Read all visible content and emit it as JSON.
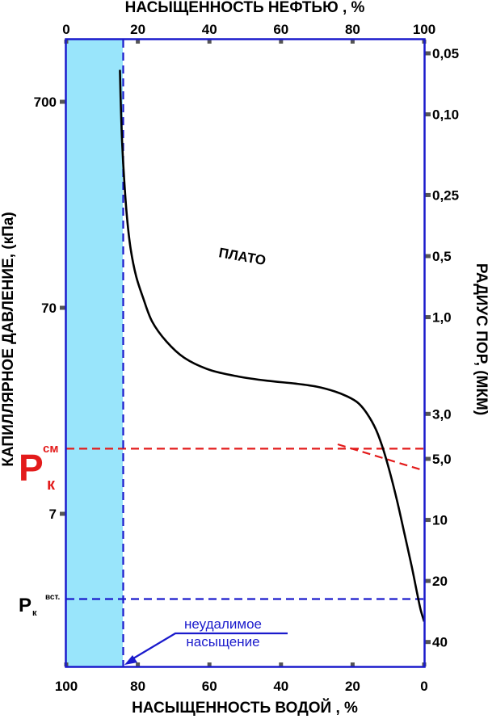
{
  "chart_data": {
    "type": "line",
    "title": "",
    "axes": {
      "top_x": {
        "label": "НАСЫЩЕННОСТЬ НЕФТЬЮ , %",
        "range": [
          0,
          100
        ],
        "ticks": [
          "0",
          "20",
          "40",
          "60",
          "80",
          "100"
        ]
      },
      "bottom_x": {
        "label": "НАСЫЩЕННОСТЬ ВОДОЙ , %",
        "range": [
          100,
          0
        ],
        "ticks": [
          "100",
          "80",
          "60",
          "40",
          "20",
          "0"
        ]
      },
      "left_y": {
        "label": "КАПИЛЛЯРНОЕ ДАВЛЕНИЕ, (кПа)",
        "scale": "log",
        "ticks": [
          {
            "value": 700,
            "label": "700"
          },
          {
            "value": 70,
            "label": "70"
          },
          {
            "value": 7,
            "label": "7"
          }
        ]
      },
      "right_y": {
        "label": "РАДИУС ПОР, (МКМ)",
        "scale": "log-reciprocal",
        "ticks": [
          "0,05",
          "0,10",
          "0,25",
          "0,5",
          "1,0",
          "3,0",
          "5,0",
          "10",
          "20",
          "40"
        ]
      }
    },
    "series": [
      {
        "name": "",
        "x_oil_saturation_pct": [
          15,
          15.2,
          15.6,
          16.2,
          17,
          18,
          19.5,
          21.5,
          24,
          28,
          33,
          40,
          48,
          56,
          64,
          70,
          75,
          78.5,
          81.5,
          84,
          86.5,
          88.5,
          90.5,
          92.5,
          94.5,
          96.5,
          98,
          99,
          100
        ],
        "y_pressure_kpa": [
          1000,
          720,
          450,
          290,
          190,
          135,
          100,
          78,
          60,
          48,
          40,
          35,
          32.5,
          31,
          30,
          29,
          27.5,
          26,
          24.2,
          21.5,
          18,
          14.5,
          11,
          8,
          5.6,
          3.9,
          2.9,
          2.4,
          2.1
        ]
      }
    ],
    "irreducible_water_saturation_pct": 15,
    "annotations": {
      "plateau": "ПЛАТО",
      "irreducible": "неудалимое\nнасыщение",
      "pk_cm": {
        "main": "Р",
        "sub": "к",
        "sup": "см",
        "pressure_kpa": 14.5
      },
      "pk_vst": {
        "main": "Р",
        "sub": "к",
        "sup": "вст.",
        "pressure_kpa": 2.7
      }
    },
    "colors": {
      "shaded_region": "#99e5fb",
      "frame": "#1a1acc",
      "curve": "#000000",
      "pk_cm_line": "#e31b1b",
      "pk_vst_line": "#1a1acc"
    }
  }
}
